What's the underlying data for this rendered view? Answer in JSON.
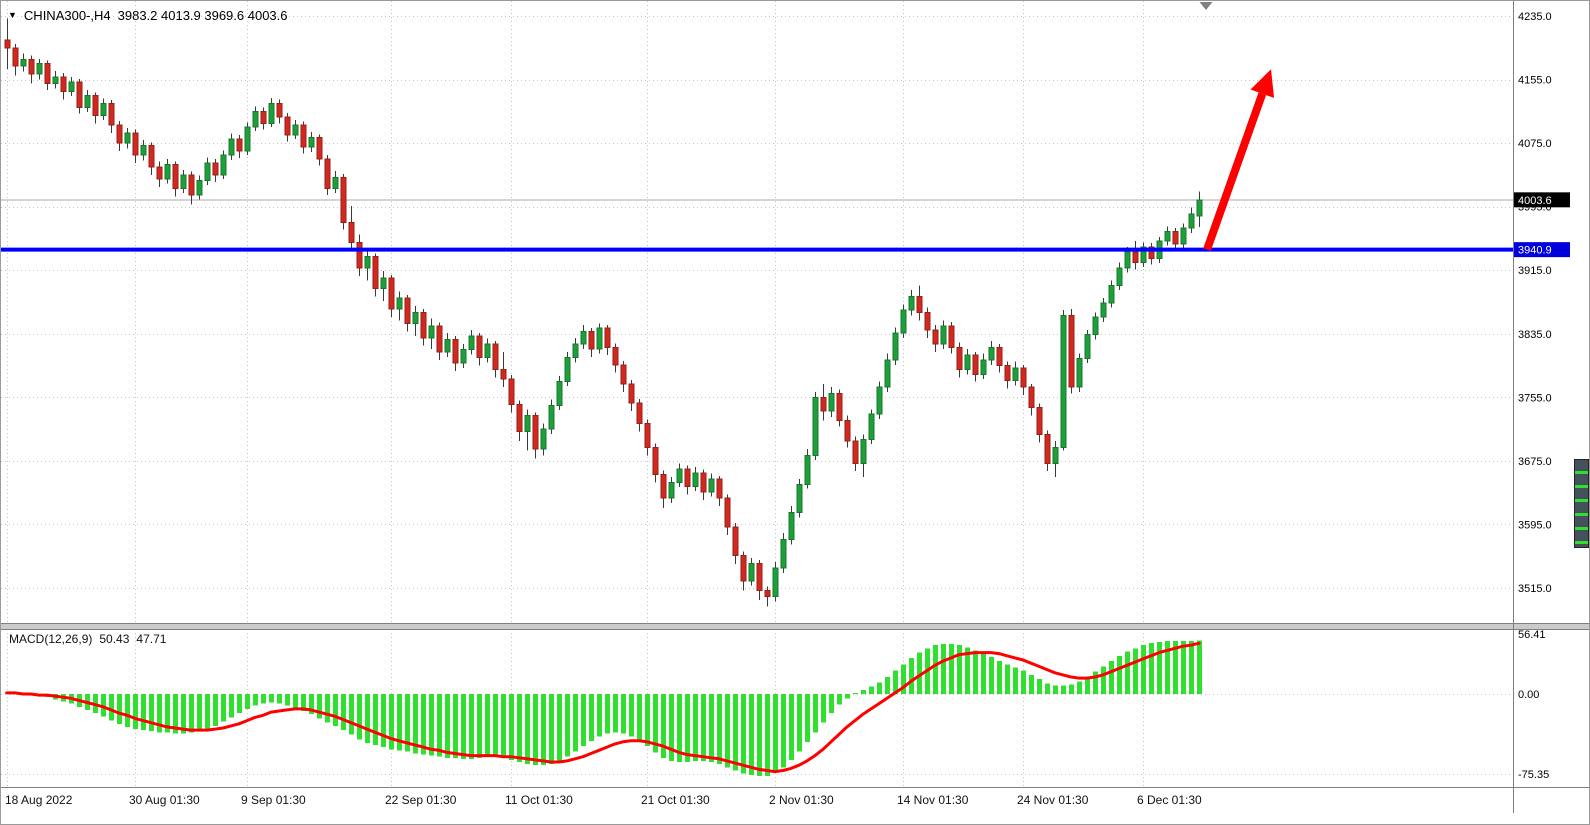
{
  "header": {
    "marker_icon": "▼",
    "symbol": "CHINA300-,H4",
    "ohlc": "3983.2 4013.9 3969.6 4003.6"
  },
  "colors": {
    "up": "#1f9e3c",
    "up_border": "#147a2b",
    "down": "#d02a20",
    "down_border": "#9c1f17",
    "wick": "#3a3a3a",
    "histogram": "#2fe02f",
    "signal": "#ff0000",
    "grid": "#c4c4c4",
    "support_line": "#0000ff",
    "arrow": "#ff0000",
    "tag_last_bg": "#000000",
    "tag_line_bg": "#0000dc",
    "axis_text": "#000000",
    "bid_line": "#a8a8a8",
    "splitter": "#cbcbcb",
    "border": "#7f7f7f"
  },
  "annotations": {
    "arrow": {
      "from_index": 150,
      "from_price": 3941,
      "to_index": 158,
      "to_price": 4168
    },
    "scroll_marker_x": 1205
  },
  "chart_data": [
    {
      "type": "candlestick",
      "symbol": "CHINA300-",
      "timeframe": "H4",
      "ohlc_current": {
        "open": 3983.2,
        "high": 4013.9,
        "low": 3969.6,
        "close": 4003.6
      },
      "last_price": 4003.6,
      "support_line_price": 3940.9,
      "y_ticks": [
        4235,
        4155,
        4075,
        3995,
        3915,
        3835,
        3755,
        3675,
        3595,
        3515
      ],
      "ylim": [
        3490,
        4253
      ],
      "grid": true,
      "x_tick_labels": [
        "18 Aug 2022",
        "30 Aug 01:30",
        "9 Sep 01:30",
        "22 Sep 01:30",
        "11 Oct 01:30",
        "21 Oct 01:30",
        "2 Nov 01:30",
        "14 Nov 01:30",
        "24 Nov 01:30",
        "6 Dec 01:30"
      ],
      "x_tick_indices": [
        0,
        16,
        30,
        48,
        63,
        80,
        96,
        112,
        127,
        142
      ],
      "candles": [
        [
          4205,
          4232,
          4168,
          4195
        ],
        [
          4195,
          4200,
          4160,
          4172
        ],
        [
          4172,
          4188,
          4165,
          4180
        ],
        [
          4180,
          4185,
          4150,
          4162
        ],
        [
          4162,
          4181,
          4155,
          4175
        ],
        [
          4175,
          4179,
          4142,
          4150
        ],
        [
          4150,
          4166,
          4144,
          4158
        ],
        [
          4158,
          4163,
          4130,
          4140
        ],
        [
          4140,
          4158,
          4134,
          4152
        ],
        [
          4152,
          4156,
          4112,
          4120
        ],
        [
          4120,
          4142,
          4114,
          4135
        ],
        [
          4135,
          4139,
          4100,
          4110
        ],
        [
          4110,
          4131,
          4104,
          4125
        ],
        [
          4125,
          4129,
          4088,
          4098
        ],
        [
          4098,
          4103,
          4065,
          4075
        ],
        [
          4075,
          4094,
          4068,
          4088
        ],
        [
          4088,
          4092,
          4050,
          4060
        ],
        [
          4060,
          4079,
          4053,
          4072
        ],
        [
          4072,
          4076,
          4035,
          4045
        ],
        [
          4045,
          4052,
          4020,
          4030
        ],
        [
          4030,
          4055,
          4024,
          4048
        ],
        [
          4048,
          4052,
          4008,
          4018
        ],
        [
          4018,
          4041,
          4012,
          4035
        ],
        [
          4035,
          4039,
          3998,
          4010
        ],
        [
          4010,
          4034,
          4004,
          4028
        ],
        [
          4028,
          4057,
          4022,
          4050
        ],
        [
          4050,
          4055,
          4026,
          4035
        ],
        [
          4035,
          4066,
          4030,
          4060
        ],
        [
          4060,
          4087,
          4054,
          4080
        ],
        [
          4080,
          4085,
          4056,
          4065
        ],
        [
          4065,
          4101,
          4060,
          4095
        ],
        [
          4095,
          4121,
          4090,
          4115
        ],
        [
          4115,
          4120,
          4092,
          4100
        ],
        [
          4100,
          4132,
          4095,
          4125
        ],
        [
          4125,
          4130,
          4100,
          4108
        ],
        [
          4108,
          4113,
          4077,
          4085
        ],
        [
          4085,
          4104,
          4080,
          4098
        ],
        [
          4098,
          4102,
          4062,
          4070
        ],
        [
          4070,
          4089,
          4064,
          4082
        ],
        [
          4082,
          4086,
          4047,
          4055
        ],
        [
          4055,
          4060,
          4010,
          4018
        ],
        [
          4018,
          4040,
          4012,
          4032
        ],
        [
          4032,
          4036,
          3966,
          3975
        ],
        [
          3975,
          3996,
          3942,
          3950
        ],
        [
          3950,
          3960,
          3908,
          3918
        ],
        [
          3918,
          3940,
          3902,
          3932
        ],
        [
          3932,
          3936,
          3882,
          3892
        ],
        [
          3892,
          3914,
          3876,
          3905
        ],
        [
          3905,
          3909,
          3856,
          3866
        ],
        [
          3866,
          3888,
          3852,
          3880
        ],
        [
          3880,
          3884,
          3838,
          3848
        ],
        [
          3848,
          3870,
          3832,
          3862
        ],
        [
          3862,
          3866,
          3820,
          3830
        ],
        [
          3830,
          3854,
          3816,
          3845
        ],
        [
          3845,
          3849,
          3802,
          3812
        ],
        [
          3812,
          3836,
          3806,
          3828
        ],
        [
          3828,
          3832,
          3788,
          3798
        ],
        [
          3798,
          3822,
          3792,
          3815
        ],
        [
          3815,
          3840,
          3809,
          3832
        ],
        [
          3832,
          3836,
          3795,
          3805
        ],
        [
          3805,
          3829,
          3799,
          3822
        ],
        [
          3822,
          3826,
          3780,
          3790
        ],
        [
          3790,
          3812,
          3768,
          3778
        ],
        [
          3778,
          3783,
          3736,
          3746
        ],
        [
          3746,
          3751,
          3700,
          3712
        ],
        [
          3712,
          3740,
          3688,
          3732
        ],
        [
          3732,
          3736,
          3678,
          3690
        ],
        [
          3690,
          3722,
          3682,
          3715
        ],
        [
          3715,
          3752,
          3709,
          3745
        ],
        [
          3745,
          3782,
          3739,
          3775
        ],
        [
          3775,
          3812,
          3769,
          3805
        ],
        [
          3805,
          3830,
          3799,
          3822
        ],
        [
          3822,
          3846,
          3816,
          3838
        ],
        [
          3838,
          3842,
          3806,
          3816
        ],
        [
          3816,
          3848,
          3810,
          3842
        ],
        [
          3842,
          3846,
          3808,
          3818
        ],
        [
          3818,
          3823,
          3786,
          3796
        ],
        [
          3796,
          3801,
          3762,
          3772
        ],
        [
          3772,
          3777,
          3738,
          3748
        ],
        [
          3748,
          3753,
          3712,
          3722
        ],
        [
          3722,
          3727,
          3682,
          3692
        ],
        [
          3692,
          3697,
          3648,
          3658
        ],
        [
          3658,
          3663,
          3616,
          3628
        ],
        [
          3628,
          3655,
          3622,
          3648
        ],
        [
          3648,
          3672,
          3642,
          3665
        ],
        [
          3665,
          3669,
          3633,
          3643
        ],
        [
          3643,
          3667,
          3637,
          3660
        ],
        [
          3660,
          3664,
          3626,
          3636
        ],
        [
          3636,
          3659,
          3630,
          3652
        ],
        [
          3652,
          3656,
          3618,
          3628
        ],
        [
          3628,
          3633,
          3582,
          3592
        ],
        [
          3592,
          3597,
          3545,
          3556
        ],
        [
          3556,
          3561,
          3512,
          3524
        ],
        [
          3524,
          3553,
          3518,
          3546
        ],
        [
          3546,
          3550,
          3500,
          3512
        ],
        [
          3512,
          3517,
          3492,
          3504
        ],
        [
          3504,
          3548,
          3498,
          3540
        ],
        [
          3540,
          3584,
          3534,
          3576
        ],
        [
          3576,
          3618,
          3570,
          3610
        ],
        [
          3610,
          3652,
          3604,
          3645
        ],
        [
          3645,
          3690,
          3640,
          3682
        ],
        [
          3682,
          3762,
          3676,
          3755
        ],
        [
          3755,
          3772,
          3726,
          3738
        ],
        [
          3738,
          3768,
          3730,
          3760
        ],
        [
          3760,
          3765,
          3718,
          3726
        ],
        [
          3726,
          3732,
          3692,
          3700
        ],
        [
          3700,
          3706,
          3662,
          3672
        ],
        [
          3672,
          3708,
          3655,
          3702
        ],
        [
          3702,
          3740,
          3696,
          3734
        ],
        [
          3734,
          3775,
          3728,
          3768
        ],
        [
          3768,
          3810,
          3762,
          3802
        ],
        [
          3802,
          3843,
          3796,
          3836
        ],
        [
          3836,
          3872,
          3830,
          3865
        ],
        [
          3865,
          3890,
          3858,
          3882
        ],
        [
          3882,
          3896,
          3852,
          3862
        ],
        [
          3862,
          3868,
          3830,
          3840
        ],
        [
          3840,
          3846,
          3812,
          3822
        ],
        [
          3822,
          3852,
          3816,
          3845
        ],
        [
          3845,
          3850,
          3810,
          3818
        ],
        [
          3818,
          3824,
          3780,
          3790
        ],
        [
          3790,
          3816,
          3784,
          3808
        ],
        [
          3808,
          3812,
          3775,
          3784
        ],
        [
          3784,
          3810,
          3778,
          3802
        ],
        [
          3802,
          3826,
          3796,
          3818
        ],
        [
          3818,
          3822,
          3786,
          3795
        ],
        [
          3795,
          3800,
          3766,
          3776
        ],
        [
          3776,
          3800,
          3770,
          3792
        ],
        [
          3792,
          3796,
          3758,
          3768
        ],
        [
          3768,
          3772,
          3732,
          3742
        ],
        [
          3742,
          3747,
          3698,
          3708
        ],
        [
          3708,
          3713,
          3662,
          3672
        ],
        [
          3672,
          3700,
          3655,
          3692
        ],
        [
          3692,
          3865,
          3688,
          3858
        ],
        [
          3858,
          3866,
          3760,
          3768
        ],
        [
          3768,
          3810,
          3762,
          3804
        ],
        [
          3804,
          3840,
          3798,
          3834
        ],
        [
          3834,
          3862,
          3828,
          3856
        ],
        [
          3856,
          3880,
          3850,
          3874
        ],
        [
          3874,
          3902,
          3868,
          3896
        ],
        [
          3896,
          3925,
          3890,
          3918
        ],
        [
          3918,
          3944,
          3912,
          3938
        ],
        [
          3938,
          3952,
          3916,
          3925
        ],
        [
          3925,
          3950,
          3919,
          3944
        ],
        [
          3944,
          3949,
          3922,
          3930
        ],
        [
          3930,
          3957,
          3924,
          3952
        ],
        [
          3952,
          3970,
          3946,
          3964
        ],
        [
          3964,
          3968,
          3940,
          3948
        ],
        [
          3948,
          3974,
          3942,
          3968
        ],
        [
          3968,
          3994,
          3962,
          3986
        ],
        [
          3983.2,
          4013.9,
          3969.6,
          4003.6
        ]
      ]
    },
    {
      "type": "bar",
      "title": "MACD(12,26,9)",
      "macd_value": "50.43",
      "signal_value": "47.71",
      "y_ticks": [
        56.41,
        0,
        -75.35
      ],
      "ylim": [
        -80,
        60
      ],
      "series": [
        {
          "name": "MACD histogram",
          "type": "bar",
          "values": [
            2,
            1,
            0,
            -1,
            -2,
            -3,
            -5,
            -7,
            -9,
            -12,
            -15,
            -18,
            -21,
            -25,
            -28,
            -31,
            -33,
            -34,
            -35,
            -36,
            -36,
            -37,
            -37,
            -36,
            -35,
            -33,
            -30,
            -26,
            -22,
            -18,
            -14,
            -11,
            -9,
            -8,
            -9,
            -11,
            -13,
            -16,
            -19,
            -23,
            -27,
            -30,
            -34,
            -38,
            -43,
            -46,
            -48,
            -50,
            -52,
            -53,
            -54,
            -56,
            -57,
            -58,
            -59,
            -60,
            -60,
            -61,
            -61,
            -60,
            -59,
            -59,
            -60,
            -62,
            -64,
            -66,
            -67,
            -67,
            -66,
            -63,
            -59,
            -54,
            -49,
            -44,
            -40,
            -37,
            -36,
            -37,
            -40,
            -44,
            -49,
            -55,
            -60,
            -63,
            -64,
            -64,
            -63,
            -63,
            -64,
            -66,
            -69,
            -72,
            -75,
            -76,
            -77,
            -77,
            -74,
            -69,
            -62,
            -54,
            -45,
            -36,
            -27,
            -18,
            -10,
            -4,
            1,
            4,
            7,
            11,
            16,
            22,
            28,
            34,
            39,
            43,
            46,
            47,
            47,
            46,
            44,
            41,
            38,
            35,
            31,
            28,
            25,
            22,
            18,
            14,
            10,
            8,
            8,
            9,
            12,
            16,
            21,
            26,
            31,
            36,
            40,
            43,
            46,
            48,
            49,
            50,
            50,
            50,
            50,
            50.43
          ]
        },
        {
          "name": "Signal",
          "type": "line",
          "values": [
            1,
            1,
            0,
            0,
            -1,
            -1,
            -2,
            -3,
            -4,
            -6,
            -8,
            -10,
            -12,
            -15,
            -18,
            -20,
            -23,
            -25,
            -27,
            -29,
            -31,
            -32,
            -33,
            -34,
            -34,
            -34,
            -33,
            -32,
            -30,
            -28,
            -25,
            -22,
            -20,
            -17,
            -16,
            -15,
            -14,
            -14,
            -15,
            -17,
            -19,
            -21,
            -24,
            -27,
            -30,
            -33,
            -36,
            -39,
            -42,
            -44,
            -46,
            -48,
            -50,
            -52,
            -53,
            -55,
            -56,
            -57,
            -58,
            -58,
            -58,
            -58,
            -59,
            -59,
            -60,
            -61,
            -62,
            -63,
            -64,
            -64,
            -63,
            -61,
            -59,
            -56,
            -53,
            -50,
            -47,
            -45,
            -44,
            -44,
            -45,
            -47,
            -49,
            -52,
            -55,
            -57,
            -58,
            -59,
            -60,
            -61,
            -63,
            -65,
            -67,
            -69,
            -71,
            -72,
            -73,
            -72,
            -70,
            -67,
            -63,
            -58,
            -52,
            -45,
            -38,
            -31,
            -25,
            -19,
            -14,
            -9,
            -4,
            1,
            6,
            12,
            17,
            22,
            27,
            31,
            34,
            37,
            38,
            39,
            39,
            39,
            38,
            36,
            34,
            32,
            29,
            26,
            23,
            20,
            18,
            16,
            15,
            15,
            16,
            18,
            21,
            24,
            27,
            30,
            33,
            36,
            39,
            41,
            43,
            45,
            46,
            47.71
          ]
        }
      ]
    }
  ]
}
